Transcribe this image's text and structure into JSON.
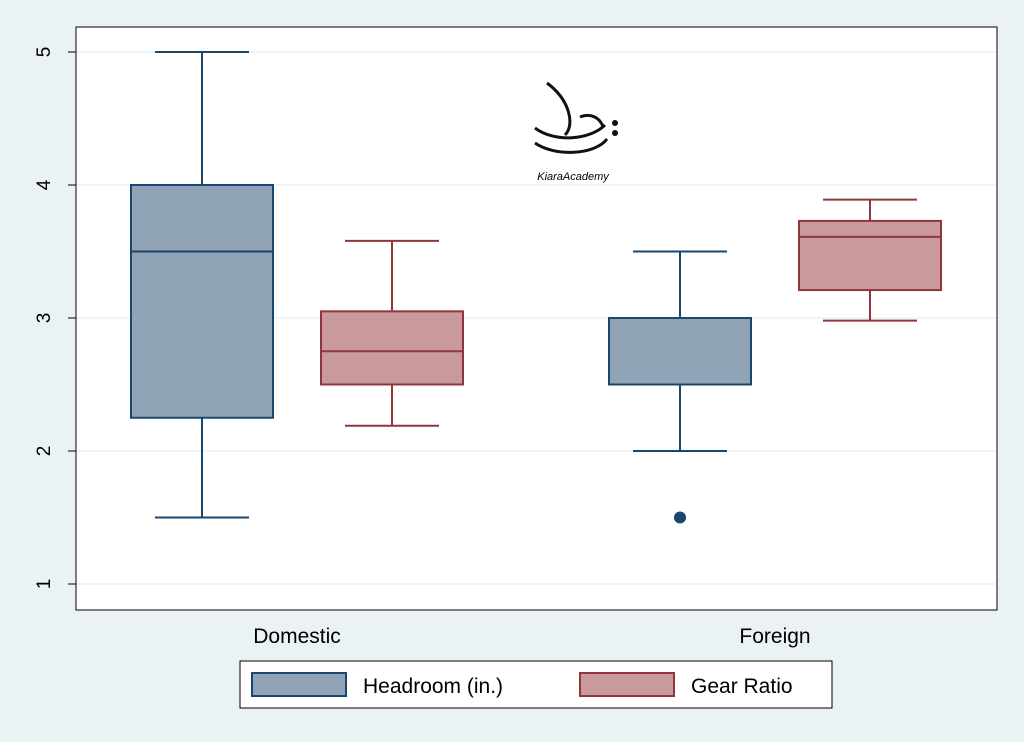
{
  "chart_data": {
    "type": "box",
    "title": "",
    "xlabel": "",
    "ylabel": "",
    "ylim": [
      1,
      5
    ],
    "yticks": [
      "1",
      "2",
      "3",
      "4",
      "5"
    ],
    "grid": true,
    "legend_position": "bottom",
    "categories": [
      "Domestic",
      "Foreign"
    ],
    "series": [
      {
        "name": "Headroom (in.)",
        "color": "#1a476f",
        "fill": "#90a3b7",
        "boxes": [
          {
            "whisker_low": 1.5,
            "q1": 2.25,
            "median": 3.5,
            "q3": 4.0,
            "whisker_high": 5.0,
            "outliers": []
          },
          {
            "whisker_low": 2.0,
            "q1": 2.5,
            "median": 2.5,
            "q3": 3.0,
            "whisker_high": 3.5,
            "outliers": [
              1.5
            ]
          }
        ]
      },
      {
        "name": "Gear Ratio",
        "color": "#90353b",
        "fill": "#c89a9d",
        "boxes": [
          {
            "whisker_low": 2.19,
            "q1": 2.5,
            "median": 2.75,
            "q3": 3.05,
            "whisker_high": 3.58,
            "outliers": []
          },
          {
            "whisker_low": 2.98,
            "q1": 3.21,
            "median": 3.61,
            "q3": 3.73,
            "whisker_high": 3.89,
            "outliers": []
          }
        ]
      }
    ]
  },
  "watermark": {
    "text": "KiaraAcademy"
  }
}
